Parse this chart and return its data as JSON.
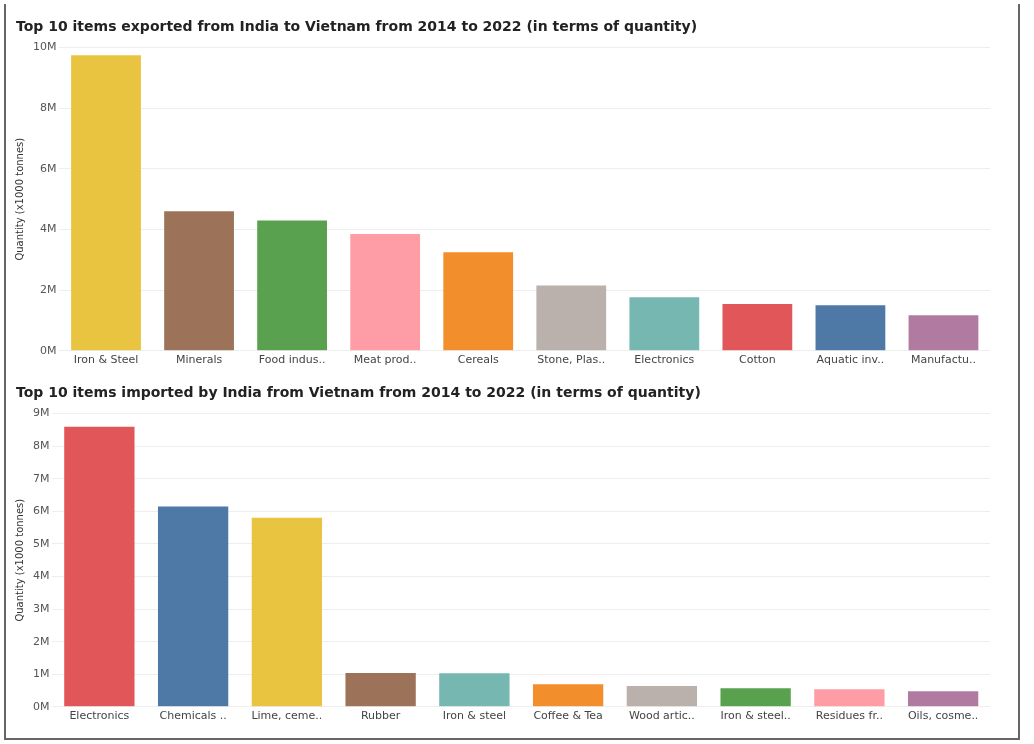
{
  "chart_data": [
    {
      "type": "bar",
      "title": "Top 10 items exported from India to Vietnam from 2014 to 2022 (in terms of quantity)",
      "ylabel": "Quantity (x1000 tonnes)",
      "categories": [
        "Iron & Steel",
        "Minerals",
        "Food indus..",
        "Meat prod..",
        "Cereals",
        "Stone, Plas..",
        "Electronics",
        "Cotton",
        "Aquatic inv..",
        "Manufactu.."
      ],
      "values": [
        9.75,
        4.6,
        4.3,
        3.85,
        3.25,
        2.15,
        1.77,
        1.54,
        1.5,
        1.17
      ],
      "colors": [
        "#e8c441",
        "#9c7358",
        "#59a14f",
        "#ff9da7",
        "#f28e2b",
        "#bab0ac",
        "#76b7b2",
        "#e15759",
        "#4e79a7",
        "#b07aa1"
      ],
      "ylim": [
        0,
        10
      ],
      "yticks": [
        {
          "value": 0,
          "label": "0M"
        },
        {
          "value": 2,
          "label": "2M"
        },
        {
          "value": 4,
          "label": "4M"
        },
        {
          "value": 6,
          "label": "6M"
        },
        {
          "value": 8,
          "label": "8M"
        },
        {
          "value": 10,
          "label": "10M"
        }
      ],
      "grid": "y",
      "legend": false
    },
    {
      "type": "bar",
      "title": "Top 10 items imported by India from Vietnam from 2014 to 2022 (in terms of quantity)",
      "ylabel": "Quantity (x1000 tonnes)",
      "categories": [
        "Electronics",
        "Chemicals ..",
        "Lime, ceme..",
        "Rubber",
        "Iron & steel",
        "Coffee & Tea",
        "Wood artic..",
        "Iron & steel..",
        "Residues fr..",
        "Oils, cosme.."
      ],
      "values": [
        8.6,
        6.15,
        5.8,
        1.04,
        1.03,
        0.69,
        0.64,
        0.57,
        0.54,
        0.48
      ],
      "colors": [
        "#e15759",
        "#4e79a7",
        "#e8c441",
        "#9c7358",
        "#76b7b2",
        "#f28e2b",
        "#bab0ac",
        "#59a14f",
        "#ff9da7",
        "#b07aa1"
      ],
      "ylim": [
        0,
        9
      ],
      "yticks": [
        {
          "value": 0,
          "label": "0M"
        },
        {
          "value": 1,
          "label": "1M"
        },
        {
          "value": 2,
          "label": "2M"
        },
        {
          "value": 3,
          "label": "3M"
        },
        {
          "value": 4,
          "label": "4M"
        },
        {
          "value": 5,
          "label": "5M"
        },
        {
          "value": 6,
          "label": "6M"
        },
        {
          "value": 7,
          "label": "7M"
        },
        {
          "value": 8,
          "label": "8M"
        },
        {
          "value": 9,
          "label": "9M"
        }
      ],
      "grid": "y",
      "legend": false
    }
  ]
}
